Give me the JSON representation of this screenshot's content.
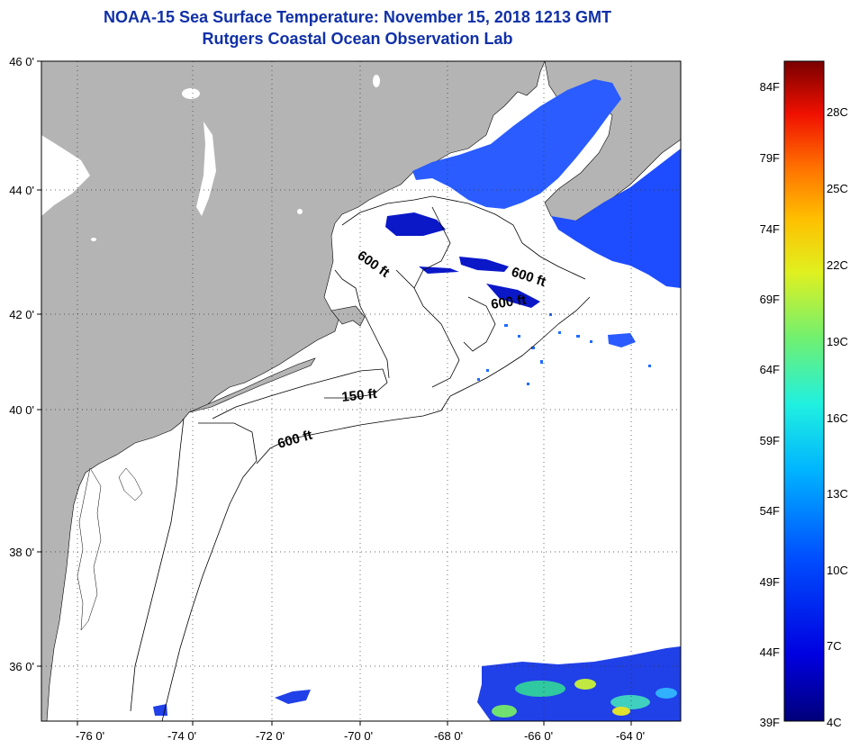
{
  "header": {
    "title": "NOAA-15 Sea Surface Temperature:  November 15, 2018 1213 GMT",
    "subtitle": "Rutgers Coastal Ocean Observation Lab"
  },
  "map": {
    "lat_labels": [
      "46 0'",
      "44 0'",
      "42 0'",
      "40 0'",
      "38 0'",
      "36 0'"
    ],
    "lon_labels": [
      "-76 0'",
      "-74 0'",
      "-72 0'",
      "-70 0'",
      "-68 0'",
      "-66 0'",
      "-64 0'"
    ],
    "contour_labels": [
      "600 ft",
      "600 ft",
      "600 ft",
      "150 ft",
      "600 ft"
    ],
    "colors": {
      "land": "#b4b4b4",
      "ocean_nodata": "#ffffff",
      "sst_cold": "#1e4cff",
      "sst_deep": "#0a18c8"
    }
  },
  "colorbar": {
    "fahrenheit_labels": [
      "84F",
      "79F",
      "74F",
      "69F",
      "64F",
      "59F",
      "54F",
      "49F",
      "44F",
      "39F"
    ],
    "celsius_labels": [
      "28C",
      "25C",
      "22C",
      "19C",
      "16C",
      "13C",
      "10C",
      "7C",
      "4C"
    ],
    "range_f": [
      39,
      86
    ],
    "range_c": [
      4,
      30
    ]
  }
}
